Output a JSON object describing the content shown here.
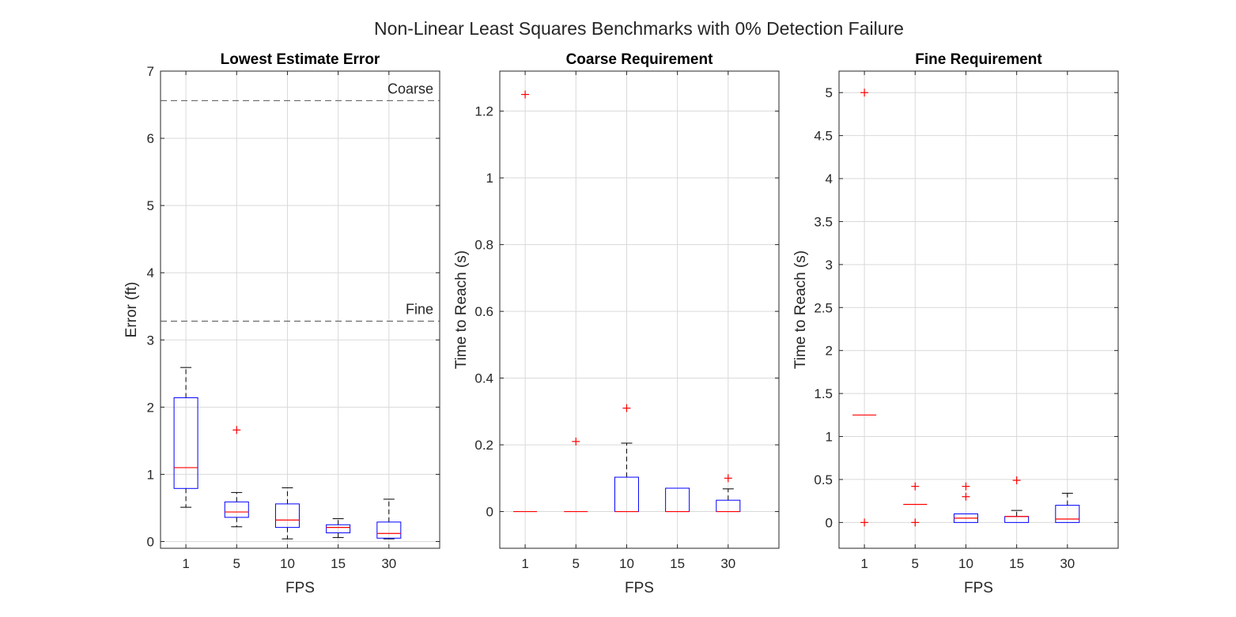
{
  "figure": {
    "title": "Non-Linear Least Squares Benchmarks with 0% Detection Failure"
  },
  "colors": {
    "box": "#0000ff",
    "median": "#ff0000",
    "outlier": "#ff0000",
    "whisker": "#000000",
    "grid": "#d9d9d9",
    "axis": "#262626",
    "ref_line": "#555555"
  },
  "chart_data": [
    {
      "type": "box",
      "title": "Lowest Estimate Error",
      "xlabel": "FPS",
      "ylabel": "Error (ft)",
      "categories": [
        "1",
        "5",
        "10",
        "15",
        "30"
      ],
      "ylim": [
        -0.1,
        7
      ],
      "yticks": [
        0,
        1,
        2,
        3,
        4,
        5,
        6,
        7
      ],
      "ytick_labels": [
        "0",
        "1",
        "2",
        "3",
        "4",
        "5",
        "6",
        "7"
      ],
      "grid": true,
      "reference_lines": [
        {
          "label": "Coarse",
          "value": 6.56
        },
        {
          "label": "Fine",
          "value": 3.28
        }
      ],
      "boxes": [
        {
          "category": "1",
          "whisker_low": 0.51,
          "q1": 0.79,
          "median": 1.1,
          "q3": 2.14,
          "whisker_high": 2.59,
          "outliers": []
        },
        {
          "category": "5",
          "whisker_low": 0.22,
          "q1": 0.36,
          "median": 0.44,
          "q3": 0.59,
          "whisker_high": 0.73,
          "outliers": [
            1.66
          ]
        },
        {
          "category": "10",
          "whisker_low": 0.04,
          "q1": 0.21,
          "median": 0.32,
          "q3": 0.56,
          "whisker_high": 0.8,
          "outliers": []
        },
        {
          "category": "15",
          "whisker_low": 0.06,
          "q1": 0.13,
          "median": 0.21,
          "q3": 0.25,
          "whisker_high": 0.34,
          "outliers": []
        },
        {
          "category": "30",
          "whisker_low": 0.04,
          "q1": 0.05,
          "median": 0.12,
          "q3": 0.29,
          "whisker_high": 0.63,
          "outliers": []
        }
      ]
    },
    {
      "type": "box",
      "title": "Coarse Requirement",
      "xlabel": "FPS",
      "ylabel": "Time to Reach (s)",
      "categories": [
        "1",
        "5",
        "10",
        "15",
        "30"
      ],
      "ylim": [
        -0.11,
        1.32
      ],
      "yticks": [
        0,
        0.2,
        0.4,
        0.6,
        0.8,
        1,
        1.2
      ],
      "ytick_labels": [
        "0",
        "0.2",
        "0.4",
        "0.6",
        "0.8",
        "1",
        "1.2"
      ],
      "grid": true,
      "reference_lines": [],
      "boxes": [
        {
          "category": "1",
          "whisker_low": 0,
          "q1": 0,
          "median": 0,
          "q3": 0,
          "whisker_high": 0,
          "outliers": [
            1.25
          ]
        },
        {
          "category": "5",
          "whisker_low": 0,
          "q1": 0,
          "median": 0,
          "q3": 0,
          "whisker_high": 0,
          "outliers": [
            0.21
          ]
        },
        {
          "category": "10",
          "whisker_low": 0,
          "q1": 0,
          "median": 0,
          "q3": 0.103,
          "whisker_high": 0.205,
          "outliers": [
            0.31
          ]
        },
        {
          "category": "15",
          "whisker_low": 0,
          "q1": 0,
          "median": 0,
          "q3": 0.07,
          "whisker_high": 0.07,
          "outliers": []
        },
        {
          "category": "30",
          "whisker_low": 0,
          "q1": 0,
          "median": 0,
          "q3": 0.034,
          "whisker_high": 0.068,
          "outliers": [
            0.1
          ]
        }
      ]
    },
    {
      "type": "box",
      "title": "Fine Requirement",
      "xlabel": "FPS",
      "ylabel": "Time to Reach (s)",
      "categories": [
        "1",
        "5",
        "10",
        "15",
        "30"
      ],
      "ylim": [
        -0.3,
        5.25
      ],
      "yticks": [
        0,
        0.5,
        1,
        1.5,
        2,
        2.5,
        3,
        3.5,
        4,
        4.5,
        5
      ],
      "ytick_labels": [
        "0",
        "0.5",
        "1",
        "1.5",
        "2",
        "2.5",
        "3",
        "3.5",
        "4",
        "4.5",
        "5"
      ],
      "grid": true,
      "reference_lines": [],
      "boxes": [
        {
          "category": "1",
          "whisker_low": 1.25,
          "q1": 1.25,
          "median": 1.25,
          "q3": 1.25,
          "whisker_high": 1.25,
          "outliers": [
            0,
            5
          ]
        },
        {
          "category": "5",
          "whisker_low": 0.21,
          "q1": 0.21,
          "median": 0.21,
          "q3": 0.21,
          "whisker_high": 0.21,
          "outliers": [
            0,
            0.42
          ]
        },
        {
          "category": "10",
          "whisker_low": 0,
          "q1": 0,
          "median": 0.05,
          "q3": 0.1,
          "whisker_high": 0.1,
          "outliers": [
            0.3,
            0.42
          ]
        },
        {
          "category": "15",
          "whisker_low": 0,
          "q1": 0,
          "median": 0.07,
          "q3": 0.07,
          "whisker_high": 0.14,
          "outliers": [
            0.49
          ]
        },
        {
          "category": "30",
          "whisker_low": 0,
          "q1": 0,
          "median": 0.04,
          "q3": 0.2,
          "whisker_high": 0.34,
          "outliers": []
        }
      ]
    }
  ]
}
